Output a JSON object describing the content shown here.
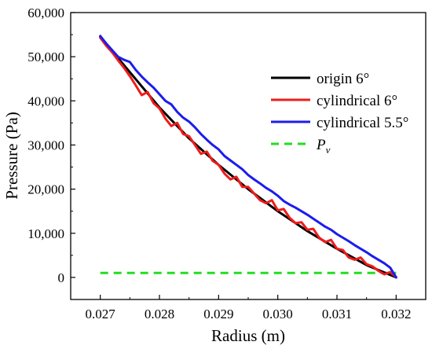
{
  "chart_data": {
    "type": "line",
    "xlabel": "Radius (m)",
    "ylabel": "Pressure (Pa)",
    "xlim": [
      0.0265,
      0.0325
    ],
    "ylim": [
      -5000,
      60000
    ],
    "x_ticks": [
      0.027,
      0.028,
      0.029,
      0.03,
      0.031,
      0.032
    ],
    "x_tick_labels": [
      "0.027",
      "0.028",
      "0.029",
      "0.030",
      "0.031",
      "0.032"
    ],
    "y_ticks": [
      0,
      10000,
      20000,
      30000,
      40000,
      50000,
      60000
    ],
    "y_tick_labels": [
      "0",
      "10,000",
      "20,000",
      "30,000",
      "40,000",
      "50,000",
      "60,000"
    ],
    "legend_position": "right",
    "grid": false,
    "series": [
      {
        "name": "origin 6°",
        "color": "#000000",
        "style": "solid",
        "x": [
          0.027,
          0.0275,
          0.028,
          0.0285,
          0.029,
          0.0295,
          0.03,
          0.0305,
          0.031,
          0.0315,
          0.032
        ],
        "y": [
          54500,
          46500,
          38500,
          31500,
          25500,
          20000,
          15000,
          10500,
          6500,
          2800,
          0
        ]
      },
      {
        "name": "cylindrical 6°",
        "color": "#ee1c1c",
        "style": "solid",
        "x": [
          0.027,
          0.0271,
          0.0272,
          0.0273,
          0.0274,
          0.0275,
          0.0276,
          0.0277,
          0.0278,
          0.0279,
          0.028,
          0.0281,
          0.0282,
          0.0283,
          0.0284,
          0.0285,
          0.0286,
          0.0287,
          0.0288,
          0.0289,
          0.029,
          0.0291,
          0.0292,
          0.0293,
          0.0294,
          0.0295,
          0.0296,
          0.0297,
          0.0298,
          0.0299,
          0.03,
          0.0301,
          0.0302,
          0.0303,
          0.0304,
          0.0305,
          0.0306,
          0.0307,
          0.0308,
          0.0309,
          0.031,
          0.0311,
          0.0312,
          0.0313,
          0.0314,
          0.0315,
          0.0316,
          0.0317,
          0.0318,
          0.0319,
          0.032
        ],
        "y": [
          54300,
          52500,
          51000,
          49200,
          47500,
          45600,
          43500,
          41300,
          42000,
          39500,
          38300,
          36000,
          34300,
          35000,
          32500,
          32000,
          30000,
          28000,
          28500,
          26400,
          25500,
          23500,
          22200,
          22800,
          20500,
          20500,
          19000,
          17500,
          16800,
          17500,
          15200,
          15500,
          13500,
          12300,
          12500,
          10800,
          11000,
          9000,
          8000,
          8500,
          6500,
          6200,
          4500,
          4000,
          4500,
          3000,
          2500,
          1500,
          700,
          1200,
          0
        ]
      },
      {
        "name": "cylindrical 5.5°",
        "color": "#1c1cee",
        "style": "solid",
        "x": [
          0.027,
          0.0271,
          0.0272,
          0.0273,
          0.0274,
          0.0275,
          0.0276,
          0.0277,
          0.0278,
          0.0279,
          0.028,
          0.0281,
          0.0282,
          0.0283,
          0.0284,
          0.0285,
          0.0286,
          0.0287,
          0.0288,
          0.0289,
          0.029,
          0.0291,
          0.0292,
          0.0293,
          0.0294,
          0.0295,
          0.0296,
          0.0297,
          0.0298,
          0.0299,
          0.03,
          0.0301,
          0.0302,
          0.0303,
          0.0304,
          0.0305,
          0.0306,
          0.0307,
          0.0308,
          0.0309,
          0.031,
          0.0311,
          0.0312,
          0.0313,
          0.0314,
          0.0315,
          0.0316,
          0.0317,
          0.0318,
          0.0319,
          0.032
        ],
        "y": [
          54700,
          53000,
          51500,
          50000,
          49300,
          48800,
          47000,
          45500,
          44200,
          43000,
          41500,
          40000,
          39200,
          37500,
          36200,
          35300,
          34000,
          32500,
          31200,
          30000,
          29000,
          27500,
          26500,
          25500,
          24500,
          23200,
          22200,
          21300,
          20300,
          19500,
          18500,
          17300,
          16500,
          15800,
          15000,
          14200,
          13300,
          12400,
          11500,
          10800,
          9800,
          9000,
          8200,
          7300,
          6500,
          5700,
          4800,
          4000,
          3200,
          2200,
          0
        ]
      },
      {
        "name": "Pv",
        "name_main": "P",
        "name_sub": "v",
        "color": "#22dd22",
        "style": "dashed",
        "x": [
          0.027,
          0.032
        ],
        "y": [
          1000,
          1000
        ]
      }
    ]
  }
}
